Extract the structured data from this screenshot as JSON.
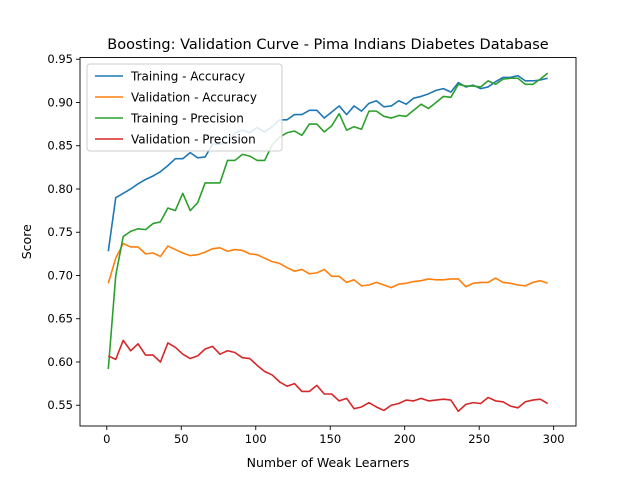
{
  "chart_data": {
    "type": "line",
    "title": "Boosting: Validation Curve - Pima Indians Diabetes Database",
    "xlabel": "Number of Weak Learners",
    "ylabel": "Score",
    "xlim": [
      -18,
      315
    ],
    "ylim": [
      0.526,
      0.952
    ],
    "xticks": [
      0,
      50,
      100,
      150,
      200,
      250,
      300
    ],
    "yticks": [
      0.55,
      0.6,
      0.65,
      0.7,
      0.75,
      0.8,
      0.85,
      0.9,
      0.95
    ],
    "xtick_labels": [
      "0",
      "50",
      "100",
      "150",
      "200",
      "250",
      "300"
    ],
    "ytick_labels": [
      "0.55",
      "0.60",
      "0.65",
      "0.70",
      "0.75",
      "0.80",
      "0.85",
      "0.90",
      "0.95"
    ],
    "grid": false,
    "legend_position": "top-left",
    "x": [
      1,
      6,
      11,
      16,
      21,
      26,
      31,
      36,
      41,
      46,
      51,
      56,
      61,
      66,
      71,
      76,
      81,
      86,
      91,
      96,
      101,
      106,
      111,
      116,
      121,
      126,
      131,
      136,
      141,
      146,
      151,
      156,
      161,
      166,
      171,
      176,
      181,
      186,
      191,
      196,
      201,
      206,
      211,
      216,
      221,
      226,
      231,
      236,
      241,
      246,
      251,
      256,
      261,
      266,
      271,
      276,
      281,
      286,
      291,
      296
    ],
    "series": [
      {
        "name": "Training - Accuracy",
        "color": "#1f77b4",
        "values": [
          0.728,
          0.79,
          0.795,
          0.8,
          0.806,
          0.811,
          0.815,
          0.82,
          0.827,
          0.835,
          0.835,
          0.842,
          0.836,
          0.837,
          0.852,
          0.852,
          0.853,
          0.865,
          0.868,
          0.865,
          0.871,
          0.866,
          0.872,
          0.88,
          0.88,
          0.886,
          0.886,
          0.891,
          0.891,
          0.882,
          0.889,
          0.896,
          0.886,
          0.896,
          0.89,
          0.899,
          0.902,
          0.895,
          0.896,
          0.902,
          0.898,
          0.905,
          0.907,
          0.91,
          0.914,
          0.916,
          0.912,
          0.923,
          0.918,
          0.92,
          0.916,
          0.918,
          0.924,
          0.929,
          0.929,
          0.931,
          0.925,
          0.925,
          0.926,
          0.928
        ]
      },
      {
        "name": "Validation - Accuracy",
        "color": "#ff7f0e",
        "values": [
          0.691,
          0.72,
          0.737,
          0.733,
          0.733,
          0.725,
          0.726,
          0.722,
          0.734,
          0.73,
          0.726,
          0.723,
          0.724,
          0.727,
          0.731,
          0.732,
          0.728,
          0.73,
          0.729,
          0.725,
          0.724,
          0.72,
          0.716,
          0.714,
          0.709,
          0.705,
          0.707,
          0.702,
          0.703,
          0.707,
          0.699,
          0.699,
          0.692,
          0.695,
          0.688,
          0.689,
          0.692,
          0.689,
          0.686,
          0.69,
          0.691,
          0.693,
          0.694,
          0.696,
          0.695,
          0.695,
          0.696,
          0.696,
          0.687,
          0.691,
          0.692,
          0.692,
          0.697,
          0.692,
          0.691,
          0.689,
          0.688,
          0.692,
          0.694,
          0.691
        ]
      },
      {
        "name": "Training - Precision",
        "color": "#2ca02c",
        "values": [
          0.592,
          0.7,
          0.745,
          0.751,
          0.754,
          0.753,
          0.76,
          0.762,
          0.778,
          0.775,
          0.795,
          0.775,
          0.784,
          0.807,
          0.807,
          0.807,
          0.833,
          0.833,
          0.84,
          0.838,
          0.833,
          0.833,
          0.851,
          0.86,
          0.865,
          0.867,
          0.862,
          0.875,
          0.875,
          0.866,
          0.873,
          0.887,
          0.868,
          0.872,
          0.869,
          0.89,
          0.89,
          0.884,
          0.882,
          0.885,
          0.884,
          0.891,
          0.898,
          0.893,
          0.9,
          0.907,
          0.906,
          0.921,
          0.919,
          0.919,
          0.918,
          0.925,
          0.921,
          0.927,
          0.928,
          0.928,
          0.921,
          0.921,
          0.927,
          0.934
        ]
      },
      {
        "name": "Validation - Precision",
        "color": "#d62728",
        "values": [
          0.607,
          0.603,
          0.625,
          0.613,
          0.621,
          0.608,
          0.608,
          0.6,
          0.622,
          0.617,
          0.609,
          0.604,
          0.607,
          0.615,
          0.618,
          0.609,
          0.613,
          0.611,
          0.605,
          0.604,
          0.596,
          0.589,
          0.585,
          0.577,
          0.572,
          0.575,
          0.566,
          0.566,
          0.573,
          0.563,
          0.563,
          0.555,
          0.558,
          0.546,
          0.548,
          0.553,
          0.548,
          0.544,
          0.55,
          0.552,
          0.556,
          0.555,
          0.558,
          0.555,
          0.556,
          0.557,
          0.556,
          0.543,
          0.551,
          0.553,
          0.552,
          0.559,
          0.555,
          0.554,
          0.549,
          0.547,
          0.554,
          0.556,
          0.557,
          0.552
        ]
      }
    ]
  }
}
